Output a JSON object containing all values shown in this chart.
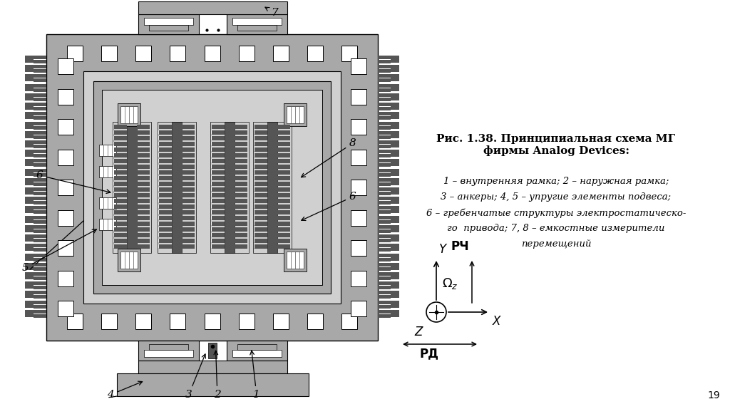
{
  "bg_color": "#ffffff",
  "title_text": "Рис. 1.38. Принципиальная схема МГ\nфирмы Analog Devices:",
  "legend_lines": [
    "1 – внутренняя рамка; 2 – наружная рамка;",
    "3 – анкеры; 4, 5 – упругие элементы подвеса;",
    "6 – гребенчатые структуры электростатическо-",
    "го  привода; 7, 8 – емкостные измерители",
    "перемещений"
  ],
  "page_number": "19",
  "gray_main": "#a8a8a8",
  "gray_dark": "#555555",
  "gray_light": "#d0d0d0",
  "gray_mid": "#888888",
  "white": "#ffffff",
  "black": "#000000"
}
